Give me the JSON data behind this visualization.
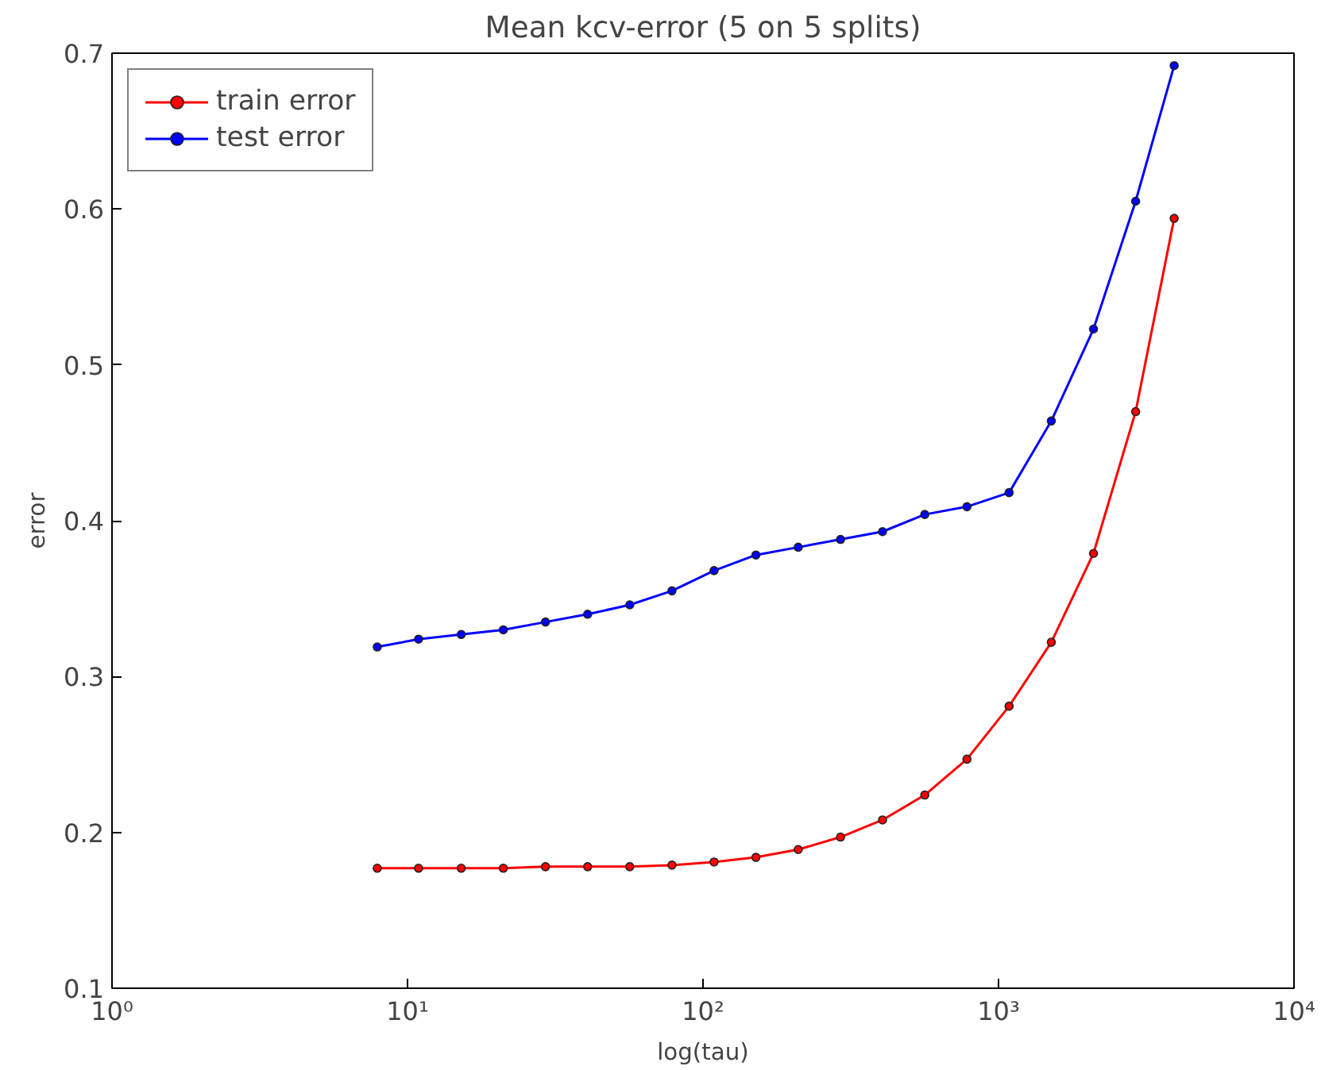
{
  "chart_data": {
    "type": "line",
    "title": "Mean kcv-error (5 on 5 splits)",
    "xlabel": "log(tau)",
    "ylabel": "error",
    "x": [
      7.9,
      10.9,
      15.2,
      21.1,
      29.3,
      40.7,
      56.5,
      78.5,
      109,
      151,
      210,
      292,
      405,
      563,
      782,
      1086,
      1509,
      2096,
      2911,
      3930
    ],
    "series": [
      {
        "name": "train error",
        "color": "#ff0000",
        "values": [
          0.177,
          0.177,
          0.177,
          0.177,
          0.178,
          0.178,
          0.178,
          0.179,
          0.181,
          0.184,
          0.189,
          0.197,
          0.208,
          0.224,
          0.247,
          0.281,
          0.322,
          0.379,
          0.47,
          0.594
        ]
      },
      {
        "name": "test error",
        "color": "#0000ff",
        "values": [
          0.319,
          0.324,
          0.327,
          0.33,
          0.335,
          0.34,
          0.346,
          0.355,
          0.368,
          0.378,
          0.383,
          0.388,
          0.393,
          0.404,
          0.409,
          0.418,
          0.464,
          0.523,
          0.605,
          0.692
        ]
      }
    ],
    "log": "x",
    "xlim": [
      1,
      10000
    ],
    "xticks": [
      {
        "value": 1,
        "label": "10⁰"
      },
      {
        "value": 10,
        "label": "10¹"
      },
      {
        "value": 100,
        "label": "10²"
      },
      {
        "value": 1000,
        "label": "10³"
      },
      {
        "value": 10000,
        "label": "10⁴"
      }
    ],
    "ylim": [
      0.1,
      0.7
    ],
    "yticks": [
      0.1,
      0.2,
      0.3,
      0.4,
      0.5,
      0.6,
      0.7
    ],
    "grid": false,
    "legend": "top left",
    "marker": "circle",
    "line_style": "solid"
  }
}
